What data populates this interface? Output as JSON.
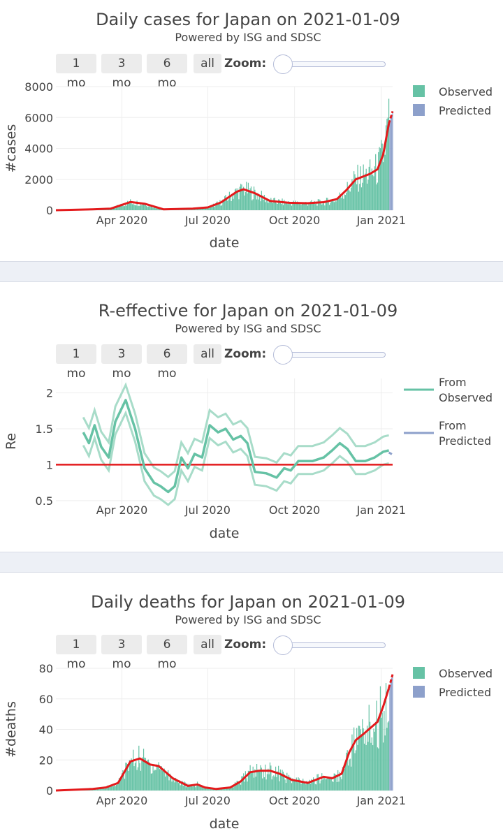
{
  "controls": {
    "buttons": [
      "1 mo",
      "3 mo",
      "6 mo",
      "all"
    ],
    "zoom_label": "Zoom:"
  },
  "chart_data": [
    {
      "type": "bar",
      "title": "Daily cases for Japan on 2021-01-09",
      "subtitle": "Powered by ISG and SDSC",
      "xlabel": "date",
      "ylabel": "#cases",
      "x_ticks": [
        "Apr 2020",
        "Jul 2020",
        "Oct 2020",
        "Jan 2021"
      ],
      "y_ticks": [
        "0",
        "2000",
        "4000",
        "6000",
        "8000"
      ],
      "ylim": [
        0,
        8000
      ],
      "x_range": [
        "2020-01-22",
        "2021-01-13"
      ],
      "legend": [
        "Observed",
        "Predicted"
      ],
      "colors": {
        "observed": "#66c2a5",
        "predicted": "#8da0cb",
        "trend": "#e31a1c"
      },
      "trend_line": {
        "dates": [
          "2020-01-22",
          "2020-03-01",
          "2020-03-20",
          "2020-04-10",
          "2020-04-25",
          "2020-05-15",
          "2020-06-15",
          "2020-07-01",
          "2020-07-15",
          "2020-08-01",
          "2020-08-08",
          "2020-08-20",
          "2020-09-05",
          "2020-09-25",
          "2020-10-15",
          "2020-11-01",
          "2020-11-15",
          "2020-11-25",
          "2020-12-05",
          "2020-12-20",
          "2020-12-28",
          "2021-01-03",
          "2021-01-09"
        ],
        "values": [
          0,
          60,
          100,
          530,
          420,
          60,
          100,
          180,
          500,
          1200,
          1350,
          1100,
          600,
          480,
          450,
          520,
          720,
          1300,
          2000,
          2350,
          2650,
          3600,
          5600
        ]
      },
      "predicted_line": {
        "dates": [
          "2021-01-09",
          "2021-01-13"
        ],
        "values": [
          5600,
          6400
        ]
      }
    },
    {
      "type": "line",
      "title": "R-effective for Japan on 2021-01-09",
      "subtitle": "Powered by ISG and SDSC",
      "xlabel": "date",
      "ylabel": "Re",
      "x_ticks": [
        "Apr 2020",
        "Jul 2020",
        "Oct 2020",
        "Jan 2021"
      ],
      "y_ticks": [
        "0.5",
        "1",
        "1.5",
        "2"
      ],
      "ylim": [
        0.45,
        2.2
      ],
      "x_range": [
        "2020-01-22",
        "2021-01-13"
      ],
      "legend": [
        "From Observed",
        "From Predicted"
      ],
      "colors": {
        "observed": "#66c2a5",
        "predicted": "#8da0cb",
        "reference": "#e31a1c"
      },
      "reference_line": 1,
      "series_observed": {
        "dates": [
          "2020-02-20",
          "2020-02-26",
          "2020-03-03",
          "2020-03-10",
          "2020-03-18",
          "2020-03-25",
          "2020-04-05",
          "2020-04-15",
          "2020-04-25",
          "2020-05-05",
          "2020-05-12",
          "2020-05-20",
          "2020-05-27",
          "2020-06-03",
          "2020-06-10",
          "2020-06-17",
          "2020-06-25",
          "2020-07-03",
          "2020-07-12",
          "2020-07-20",
          "2020-07-28",
          "2020-08-05",
          "2020-08-12",
          "2020-08-20",
          "2020-09-01",
          "2020-09-12",
          "2020-09-20",
          "2020-09-27",
          "2020-10-05",
          "2020-10-20",
          "2020-11-01",
          "2020-11-10",
          "2020-11-18",
          "2020-11-26",
          "2020-12-05",
          "2020-12-15",
          "2020-12-25",
          "2021-01-03",
          "2021-01-09"
        ],
        "values": [
          1.45,
          1.3,
          1.55,
          1.25,
          1.1,
          1.6,
          1.9,
          1.5,
          0.95,
          0.75,
          0.7,
          0.62,
          0.7,
          1.1,
          0.95,
          1.15,
          1.1,
          1.55,
          1.45,
          1.5,
          1.35,
          1.4,
          1.3,
          0.9,
          0.88,
          0.82,
          0.95,
          0.92,
          1.05,
          1.05,
          1.1,
          1.2,
          1.3,
          1.22,
          1.05,
          1.05,
          1.1,
          1.18,
          1.2
        ]
      },
      "series_predicted": {
        "dates": [
          "2021-01-09",
          "2021-01-13"
        ],
        "values": [
          1.17,
          1.14
        ]
      },
      "band_width": 0.15
    },
    {
      "type": "bar",
      "title": "Daily deaths for Japan on 2021-01-09",
      "subtitle": "Powered by ISG and SDSC",
      "xlabel": "date",
      "ylabel": "#deaths",
      "x_ticks": [
        "Apr 2020",
        "Jul 2020",
        "Oct 2020",
        "Jan 2021"
      ],
      "y_ticks": [
        "0",
        "20",
        "40",
        "60",
        "80"
      ],
      "ylim": [
        0,
        80
      ],
      "x_range": [
        "2020-01-22",
        "2021-01-13"
      ],
      "legend": [
        "Observed",
        "Predicted"
      ],
      "colors": {
        "observed": "#66c2a5",
        "predicted": "#8da0cb",
        "trend": "#e31a1c"
      },
      "trend_line": {
        "dates": [
          "2020-01-22",
          "2020-03-01",
          "2020-03-15",
          "2020-03-28",
          "2020-04-10",
          "2020-04-20",
          "2020-05-01",
          "2020-05-10",
          "2020-05-25",
          "2020-06-10",
          "2020-06-20",
          "2020-06-28",
          "2020-07-10",
          "2020-07-25",
          "2020-08-05",
          "2020-08-15",
          "2020-08-25",
          "2020-09-05",
          "2020-09-15",
          "2020-09-28",
          "2020-10-15",
          "2020-11-01",
          "2020-11-10",
          "2020-11-20",
          "2020-11-28",
          "2020-12-05",
          "2020-12-15",
          "2020-12-28",
          "2021-01-03",
          "2021-01-09"
        ],
        "values": [
          0,
          1,
          2,
          5,
          19,
          21,
          17,
          16,
          8,
          3,
          4,
          2,
          1,
          2,
          6,
          12,
          13,
          13,
          11,
          7,
          5,
          9,
          8,
          11,
          25,
          33,
          38,
          45,
          55,
          67
        ]
      },
      "predicted_line": {
        "dates": [
          "2021-01-09",
          "2021-01-13"
        ],
        "values": [
          67,
          76
        ]
      }
    }
  ]
}
